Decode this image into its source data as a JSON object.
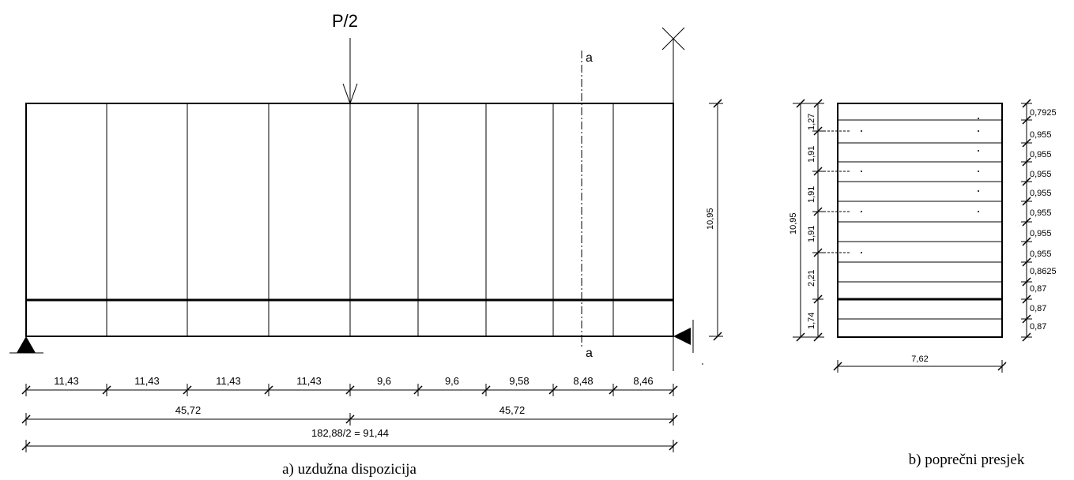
{
  "left_view": {
    "load_label": "P/2",
    "section_mark_top": "a",
    "section_mark_bottom": "a",
    "height_label": "10,95",
    "segment_labels": [
      "11,43",
      "11,43",
      "11,43",
      "11,43",
      "9,6",
      "9,6",
      "9,58",
      "8,48",
      "8,46"
    ],
    "half_labels": [
      "45,72",
      "45,72"
    ],
    "total_label": "182,88/2 = 91,44",
    "caption": "a) uzdužna dispozicija"
  },
  "right_view": {
    "total_height_label": "10,95",
    "left_segment_labels": [
      "1,27",
      "1,91",
      "1,91",
      "1,91",
      "2,21",
      "1,74"
    ],
    "right_segment_labels": [
      "0,7925",
      "0,955",
      "0,955",
      "0,955",
      "0,955",
      "0,955",
      "0,955",
      "0,955",
      "0,8625",
      "0,87",
      "0,87",
      "0,87"
    ],
    "width_label": "7,62",
    "caption": "b) poprečni presjek"
  }
}
